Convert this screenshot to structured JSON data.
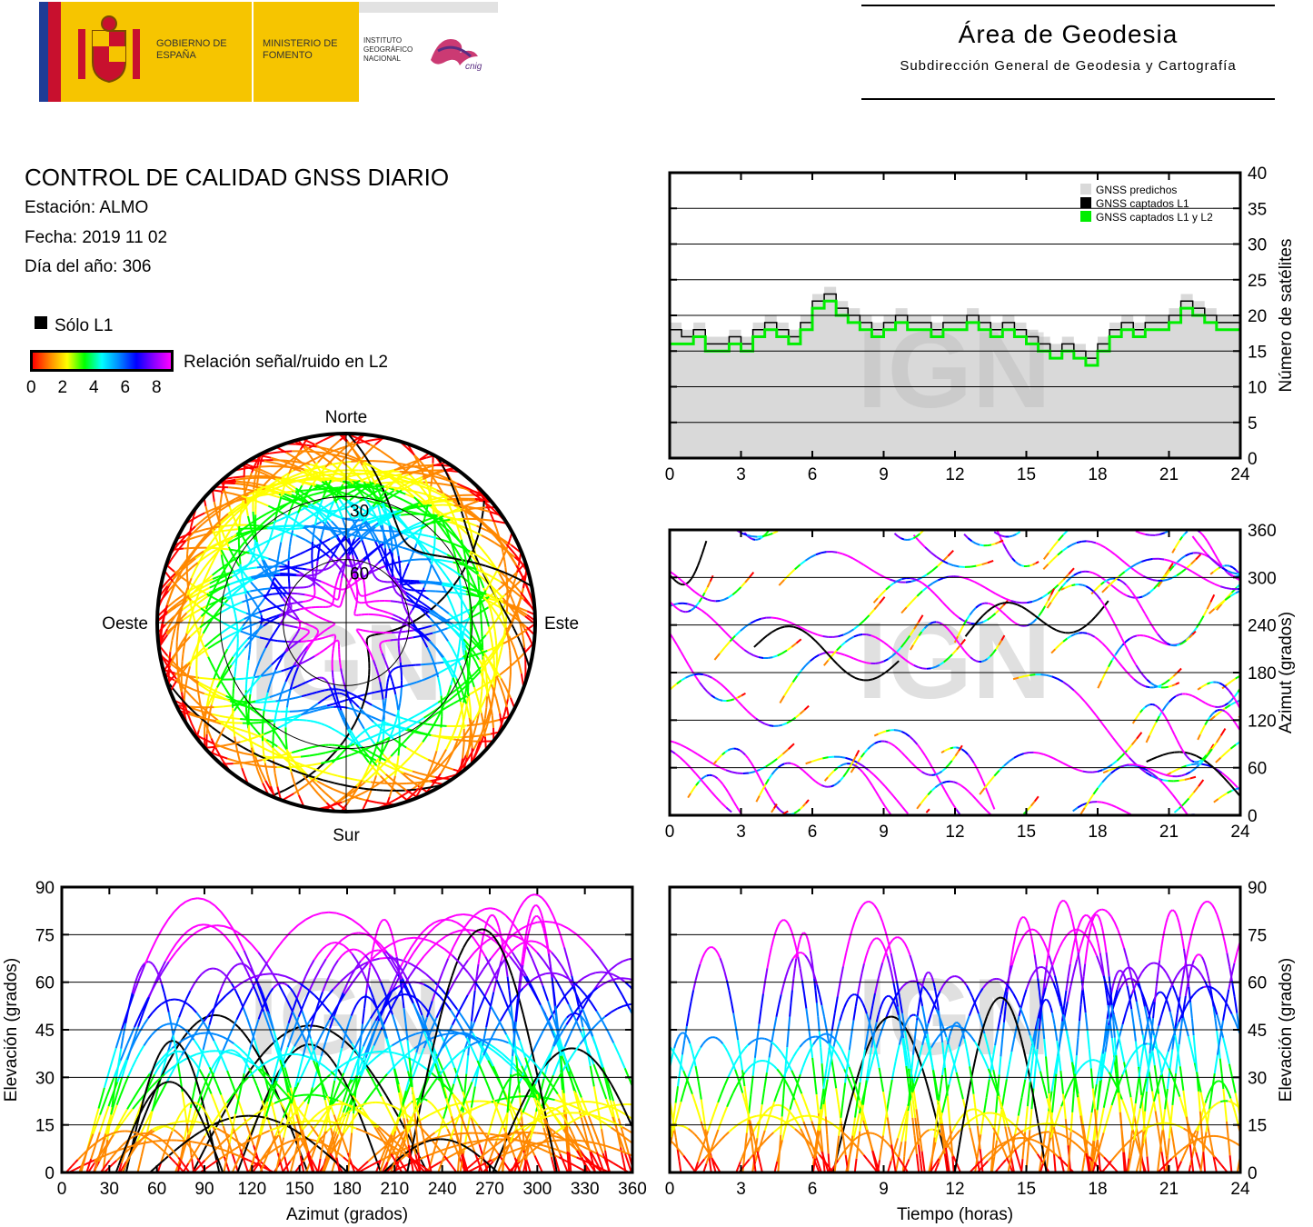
{
  "header": {
    "gobierno": "GOBIERNO DE ESPAÑA",
    "ministerio": "MINISTERIO DE FOMENTO",
    "instituto": "INSTITUTO GEOGRÁFICO NACIONAL",
    "cnig": "cnig",
    "area_title": "Área de Geodesia",
    "area_subtitle": "Subdirección General de Geodesia y Cartografía"
  },
  "info": {
    "title": "CONTROL DE CALIDAD GNSS DIARIO",
    "station": "Estación: ALMO",
    "date": "Fecha: 2019 11 02",
    "doy": "Día del año: 306"
  },
  "legend": {
    "l1_only": "Sólo L1",
    "snr_label": "Relación señal/ruido en L2",
    "snr_ticks": [
      "0",
      "2",
      "4",
      "6",
      "8"
    ],
    "snr_colors": [
      "#ff0000",
      "#ff8800",
      "#ffff00",
      "#00ff00",
      "#00ffff",
      "#0088ff",
      "#0000ff",
      "#8800ff",
      "#ff00ff"
    ],
    "l1_color": "#000000"
  },
  "watermark": "IGN",
  "chart_data": [
    {
      "id": "satellites",
      "type": "line",
      "ylabel": "Número de satélites",
      "xlim": [
        0,
        24
      ],
      "ylim": [
        0,
        40
      ],
      "xticks": [
        "0",
        "3",
        "6",
        "9",
        "12",
        "15",
        "18",
        "21",
        "24"
      ],
      "yticks": [
        "0",
        "5",
        "10",
        "15",
        "20",
        "25",
        "30",
        "35",
        "40"
      ],
      "legend": [
        "GNSS predichos",
        "GNSS captados L1",
        "GNSS captados L1 y L2"
      ],
      "legend_position": "top-right",
      "series": [
        {
          "name": "GNSS predichos",
          "color": "#d9d9d9",
          "x": [
            0,
            0.5,
            1,
            1.5,
            2,
            2.5,
            3,
            3.5,
            4,
            4.5,
            5,
            5.5,
            6,
            6.5,
            7,
            7.5,
            8,
            8.5,
            9,
            9.5,
            10,
            10.5,
            11,
            11.5,
            12,
            12.5,
            13,
            13.5,
            14,
            14.5,
            15,
            15.5,
            16,
            16.5,
            17,
            17.5,
            18,
            18.5,
            19,
            19.5,
            20,
            20.5,
            21,
            21.5,
            22,
            22.5,
            23,
            23.5,
            24
          ],
          "values": [
            19,
            18,
            19,
            17,
            17,
            18,
            17,
            19,
            20,
            19,
            18,
            20,
            23,
            24,
            22,
            21,
            20,
            19,
            20,
            21,
            20,
            20,
            19,
            20,
            20,
            21,
            20,
            19,
            20,
            19,
            18,
            17,
            16,
            17,
            16,
            15,
            17,
            19,
            20,
            19,
            20,
            20,
            21,
            23,
            22,
            21,
            20,
            20,
            20
          ]
        },
        {
          "name": "GNSS captados L1",
          "color": "#000000",
          "x": [
            0,
            0.5,
            1,
            1.5,
            2,
            2.5,
            3,
            3.5,
            4,
            4.5,
            5,
            5.5,
            6,
            6.5,
            7,
            7.5,
            8,
            8.5,
            9,
            9.5,
            10,
            10.5,
            11,
            11.5,
            12,
            12.5,
            13,
            13.5,
            14,
            14.5,
            15,
            15.5,
            16,
            16.5,
            17,
            17.5,
            18,
            18.5,
            19,
            19.5,
            20,
            20.5,
            21,
            21.5,
            22,
            22.5,
            23,
            23.5,
            24
          ],
          "values": [
            18,
            17,
            18,
            16,
            16,
            17,
            16,
            18,
            19,
            18,
            17,
            19,
            22,
            23,
            21,
            20,
            19,
            18,
            19,
            20,
            19,
            19,
            18,
            19,
            19,
            20,
            19,
            18,
            19,
            18,
            17,
            16,
            15,
            16,
            15,
            14,
            16,
            18,
            19,
            18,
            19,
            19,
            20,
            22,
            21,
            20,
            19,
            19,
            19
          ]
        },
        {
          "name": "GNSS captados L1 y L2",
          "color": "#00ee00",
          "x": [
            0,
            0.5,
            1,
            1.5,
            2,
            2.5,
            3,
            3.5,
            4,
            4.5,
            5,
            5.5,
            6,
            6.5,
            7,
            7.5,
            8,
            8.5,
            9,
            9.5,
            10,
            10.5,
            11,
            11.5,
            12,
            12.5,
            13,
            13.5,
            14,
            14.5,
            15,
            15.5,
            16,
            16.5,
            17,
            17.5,
            18,
            18.5,
            19,
            19.5,
            20,
            20.5,
            21,
            21.5,
            22,
            22.5,
            23,
            23.5,
            24
          ],
          "values": [
            16,
            16,
            17,
            15,
            15,
            16,
            15,
            17,
            18,
            17,
            16,
            18,
            21,
            22,
            20,
            19,
            18,
            17,
            18,
            19,
            18,
            18,
            17,
            18,
            18,
            19,
            18,
            17,
            18,
            17,
            16,
            15,
            14,
            15,
            14,
            13,
            15,
            17,
            18,
            17,
            18,
            18,
            19,
            21,
            20,
            19,
            18,
            18,
            18
          ]
        }
      ]
    },
    {
      "id": "skyplot",
      "type": "scatter",
      "north_label": "Norte",
      "south_label": "Sur",
      "east_label": "Este",
      "west_label": "Oeste",
      "elevation_rings": [
        "30",
        "60"
      ]
    },
    {
      "id": "azimuth-time",
      "type": "scatter",
      "ylabel": "Azimut (grados)",
      "xlim": [
        0,
        24
      ],
      "ylim": [
        0,
        360
      ],
      "xticks": [
        "0",
        "3",
        "6",
        "9",
        "12",
        "15",
        "18",
        "21",
        "24"
      ],
      "yticks": [
        "0",
        "60",
        "120",
        "180",
        "240",
        "300",
        "360"
      ]
    },
    {
      "id": "elev-azimuth",
      "type": "scatter",
      "xlabel": "Azimut (grados)",
      "ylabel": "Elevación (grados)",
      "xlim": [
        0,
        360
      ],
      "ylim": [
        0,
        90
      ],
      "xticks": [
        "0",
        "30",
        "60",
        "90",
        "120",
        "150",
        "180",
        "210",
        "240",
        "270",
        "300",
        "330",
        "360"
      ],
      "yticks": [
        "0",
        "15",
        "30",
        "45",
        "60",
        "75",
        "90"
      ]
    },
    {
      "id": "elev-time",
      "type": "scatter",
      "xlabel": "Tiempo (horas)",
      "ylabel": "Elevación (grados)",
      "xlim": [
        0,
        24
      ],
      "ylim": [
        0,
        90
      ],
      "xticks": [
        "0",
        "3",
        "6",
        "9",
        "12",
        "15",
        "18",
        "21",
        "24"
      ],
      "yticks": [
        "0",
        "15",
        "30",
        "45",
        "60",
        "75",
        "90"
      ]
    }
  ]
}
